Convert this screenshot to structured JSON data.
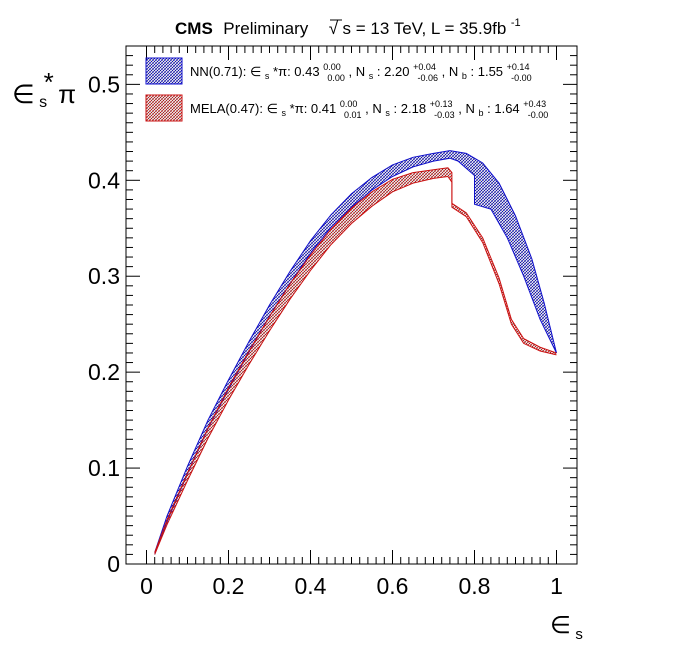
{
  "header": {
    "cms_label": "CMS",
    "preliminary_label": "Preliminary",
    "sqrt_symbol": "√",
    "energy_text": "s = 13 TeV, L = 35.9fb",
    "lumi_exponent": "-1"
  },
  "axes": {
    "x_label_main": "∈",
    "x_label_sub": "s",
    "y_label_main": "∈",
    "y_label_sub": "s",
    "y_label_star": "*",
    "y_label_pi": "π"
  },
  "legend": {
    "nn": {
      "name": "NN(0.71): ",
      "eps_sym": "∈",
      "eps_sub": "s",
      "star_pi": "*π: 0.43",
      "eff_up": "0.00",
      "eff_dn": "0.00",
      "ns_label": ", N",
      "ns_sub": "s",
      "ns_val": ": 2.20",
      "ns_up": "+0.04",
      "ns_dn": "-0.06",
      "nb_label": ", N",
      "nb_sub": "b",
      "nb_val": ": 1.55",
      "nb_up": "+0.14",
      "nb_dn": "-0.00"
    },
    "mela": {
      "name": "MELA(0.47): ",
      "eps_sym": "∈",
      "eps_sub": "s",
      "star_pi": "*π: 0.41",
      "eff_up": "0.00",
      "eff_dn": "0.01",
      "ns_label": ", N",
      "ns_sub": "s",
      "ns_val": ": 2.18",
      "ns_up": "+0.13",
      "ns_dn": "-0.03",
      "nb_label": ", N",
      "nb_sub": "b",
      "nb_val": ": 1.64",
      "nb_up": "+0.43",
      "nb_dn": "-0.00"
    }
  },
  "colors": {
    "nn": "#1010cc",
    "mela": "#cc1010"
  },
  "chart_data": {
    "type": "line",
    "xlim": [
      -0.05,
      1.05
    ],
    "ylim": [
      0,
      0.54
    ],
    "xticks": [
      0,
      0.2,
      0.4,
      0.6,
      0.8,
      1
    ],
    "xtick_labels": [
      "0",
      "0.2",
      "0.4",
      "0.6",
      "0.8",
      "1"
    ],
    "yticks": [
      0,
      0.1,
      0.2,
      0.3,
      0.4,
      0.5
    ],
    "ytick_labels": [
      "0",
      "0.1",
      "0.2",
      "0.3",
      "0.4",
      "0.5"
    ],
    "series": [
      {
        "name": "NN(0.71)",
        "color": "#1010cc",
        "upper": [
          [
            0.02,
            0.012
          ],
          [
            0.05,
            0.05
          ],
          [
            0.1,
            0.102
          ],
          [
            0.15,
            0.15
          ],
          [
            0.2,
            0.192
          ],
          [
            0.25,
            0.232
          ],
          [
            0.3,
            0.27
          ],
          [
            0.35,
            0.305
          ],
          [
            0.4,
            0.337
          ],
          [
            0.45,
            0.364
          ],
          [
            0.5,
            0.386
          ],
          [
            0.55,
            0.403
          ],
          [
            0.6,
            0.416
          ],
          [
            0.65,
            0.424
          ],
          [
            0.7,
            0.428
          ],
          [
            0.74,
            0.431
          ],
          [
            0.78,
            0.428
          ],
          [
            0.82,
            0.418
          ],
          [
            0.86,
            0.397
          ],
          [
            0.9,
            0.363
          ],
          [
            0.94,
            0.318
          ],
          [
            0.97,
            0.272
          ],
          [
            1.0,
            0.22
          ]
        ],
        "lower": [
          [
            0.02,
            0.01
          ],
          [
            0.05,
            0.044
          ],
          [
            0.1,
            0.094
          ],
          [
            0.15,
            0.141
          ],
          [
            0.2,
            0.182
          ],
          [
            0.25,
            0.221
          ],
          [
            0.3,
            0.258
          ],
          [
            0.35,
            0.292
          ],
          [
            0.4,
            0.324
          ],
          [
            0.45,
            0.351
          ],
          [
            0.5,
            0.372
          ],
          [
            0.55,
            0.39
          ],
          [
            0.6,
            0.404
          ],
          [
            0.65,
            0.414
          ],
          [
            0.7,
            0.42
          ],
          [
            0.74,
            0.423
          ],
          [
            0.76,
            0.42
          ],
          [
            0.8,
            0.405
          ],
          [
            0.8,
            0.375
          ],
          [
            0.84,
            0.37
          ],
          [
            0.88,
            0.34
          ],
          [
            0.92,
            0.3
          ],
          [
            0.96,
            0.255
          ],
          [
            1.0,
            0.22
          ]
        ]
      },
      {
        "name": "MELA(0.47)",
        "color": "#cc1010",
        "upper": [
          [
            0.02,
            0.012
          ],
          [
            0.05,
            0.046
          ],
          [
            0.1,
            0.095
          ],
          [
            0.15,
            0.142
          ],
          [
            0.2,
            0.184
          ],
          [
            0.25,
            0.222
          ],
          [
            0.3,
            0.258
          ],
          [
            0.35,
            0.292
          ],
          [
            0.4,
            0.322
          ],
          [
            0.45,
            0.349
          ],
          [
            0.5,
            0.371
          ],
          [
            0.55,
            0.388
          ],
          [
            0.6,
            0.401
          ],
          [
            0.65,
            0.408
          ],
          [
            0.7,
            0.411
          ],
          [
            0.735,
            0.413
          ],
          [
            0.745,
            0.408
          ],
          [
            0.745,
            0.376
          ],
          [
            0.78,
            0.366
          ],
          [
            0.82,
            0.34
          ],
          [
            0.86,
            0.298
          ],
          [
            0.89,
            0.255
          ],
          [
            0.92,
            0.235
          ],
          [
            0.96,
            0.226
          ],
          [
            1.0,
            0.22
          ]
        ],
        "lower": [
          [
            0.02,
            0.01
          ],
          [
            0.05,
            0.041
          ],
          [
            0.1,
            0.087
          ],
          [
            0.15,
            0.131
          ],
          [
            0.2,
            0.171
          ],
          [
            0.25,
            0.208
          ],
          [
            0.3,
            0.243
          ],
          [
            0.35,
            0.276
          ],
          [
            0.4,
            0.306
          ],
          [
            0.45,
            0.333
          ],
          [
            0.5,
            0.355
          ],
          [
            0.55,
            0.373
          ],
          [
            0.6,
            0.388
          ],
          [
            0.65,
            0.397
          ],
          [
            0.7,
            0.402
          ],
          [
            0.735,
            0.404
          ],
          [
            0.745,
            0.398
          ],
          [
            0.745,
            0.372
          ],
          [
            0.78,
            0.362
          ],
          [
            0.82,
            0.335
          ],
          [
            0.86,
            0.292
          ],
          [
            0.89,
            0.25
          ],
          [
            0.92,
            0.23
          ],
          [
            0.96,
            0.222
          ],
          [
            1.0,
            0.218
          ]
        ]
      }
    ]
  }
}
